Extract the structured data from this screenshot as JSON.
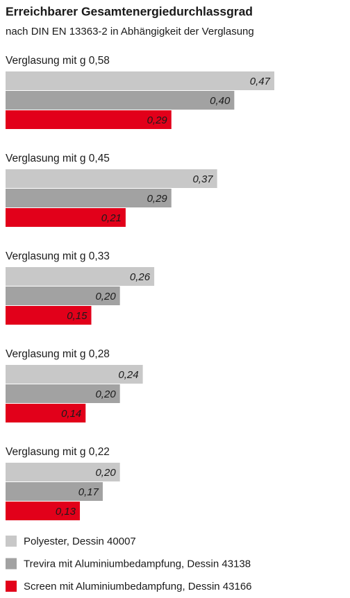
{
  "chart_data": {
    "type": "bar",
    "orientation": "horizontal",
    "title": "Erreichbarer Gesamtenergiedurchlassgrad",
    "subtitle": "nach DIN EN 13363-2 in Abhängigkeit der Verglasung",
    "categories": [
      "Verglasung mit g 0,58",
      "Verglasung mit g 0,45",
      "Verglasung mit g 0,33",
      "Verglasung mit g 0,28",
      "Verglasung mit g 0,22"
    ],
    "series": [
      {
        "name": "Polyester, Dessin 40007",
        "color": "#c8c8c8",
        "values": [
          0.47,
          0.37,
          0.26,
          0.24,
          0.2
        ],
        "value_labels": [
          "0,47",
          "0,37",
          "0,26",
          "0,24",
          "0,20"
        ]
      },
      {
        "name": "Trevira mit Aluminiumbedampfung, Dessin 43138",
        "color": "#a2a2a2",
        "values": [
          0.4,
          0.29,
          0.2,
          0.2,
          0.17
        ],
        "value_labels": [
          "0,40",
          "0,29",
          "0,20",
          "0,20",
          "0,17"
        ]
      },
      {
        "name": "Screen mit Aluminiumbedampfung, Dessin 43166",
        "color": "#e2001a",
        "values": [
          0.29,
          0.21,
          0.15,
          0.14,
          0.13
        ],
        "value_labels": [
          "0,29",
          "0,21",
          "0,15",
          "0,14",
          "0,13"
        ]
      }
    ]
  }
}
